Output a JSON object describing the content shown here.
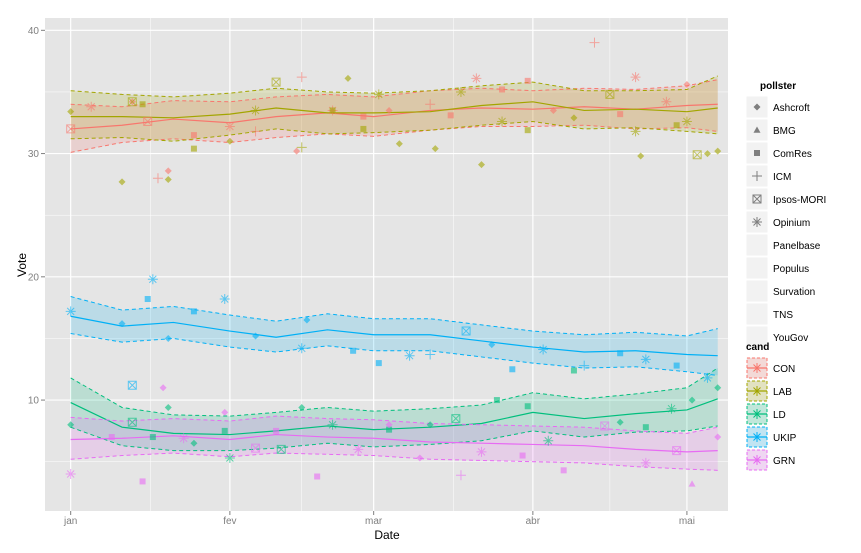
{
  "chart_data": {
    "type": "scatter",
    "xlabel": "Date",
    "ylabel": "Vote",
    "x_tick_labels": [
      "jan",
      "fev",
      "mar",
      "abr",
      "mai"
    ],
    "x_tick_days": [
      0,
      31,
      59,
      90,
      120
    ],
    "xlim_days": [
      -5,
      128
    ],
    "y_ticks": [
      10,
      20,
      30,
      40
    ],
    "ylim": [
      1,
      41
    ],
    "grid": true,
    "legend_position": "right",
    "pollster_legend": {
      "title": "pollster",
      "entries": [
        {
          "name": "Ashcroft",
          "shape": "diamond"
        },
        {
          "name": "BMG",
          "shape": "triangle"
        },
        {
          "name": "ComRes",
          "shape": "square"
        },
        {
          "name": "ICM",
          "shape": "plus"
        },
        {
          "name": "Ipsos-MORI",
          "shape": "boxx"
        },
        {
          "name": "Opinium",
          "shape": "star"
        },
        {
          "name": "Panelbase",
          "shape": "none"
        },
        {
          "name": "Populus",
          "shape": "none"
        },
        {
          "name": "Survation",
          "shape": "none"
        },
        {
          "name": "TNS",
          "shape": "none"
        },
        {
          "name": "YouGov",
          "shape": "none"
        }
      ]
    },
    "cand_legend": {
      "title": "cand",
      "entries": [
        {
          "name": "CON",
          "color": "#F8766D"
        },
        {
          "name": "LAB",
          "color": "#A3A500"
        },
        {
          "name": "LD",
          "color": "#00BF7D"
        },
        {
          "name": "UKIP",
          "color": "#00B0F6"
        },
        {
          "name": "GRN",
          "color": "#E76BF3"
        }
      ]
    },
    "trend_days": [
      0,
      10,
      20,
      31,
      40,
      50,
      59,
      70,
      80,
      90,
      100,
      110,
      120,
      126
    ],
    "series": [
      {
        "name": "CON",
        "color": "#F8766D",
        "mean": [
          32.0,
          32.3,
          32.8,
          32.5,
          33.0,
          33.3,
          33.0,
          33.5,
          33.7,
          33.6,
          33.8,
          33.6,
          33.9,
          34.0
        ],
        "lower": [
          30.1,
          30.9,
          31.2,
          30.9,
          31.3,
          31.6,
          31.4,
          31.9,
          32.2,
          32.2,
          32.3,
          32.0,
          32.1,
          31.8
        ],
        "upper": [
          34.0,
          33.8,
          34.3,
          34.2,
          34.6,
          34.8,
          34.6,
          35.1,
          35.3,
          35.1,
          35.3,
          35.2,
          35.5,
          36.0
        ],
        "points": [
          {
            "day": 0,
            "value": 32.0,
            "pollster": "Ipsos-MORI"
          },
          {
            "day": 4,
            "value": 33.8,
            "pollster": "Opinium"
          },
          {
            "day": 12,
            "value": 34.2,
            "pollster": "Ashcroft"
          },
          {
            "day": 15,
            "value": 32.6,
            "pollster": "Ipsos-MORI"
          },
          {
            "day": 17,
            "value": 28.0,
            "pollster": "ICM"
          },
          {
            "day": 19,
            "value": 28.6,
            "pollster": "Ashcroft"
          },
          {
            "day": 24,
            "value": 31.5,
            "pollster": "ComRes"
          },
          {
            "day": 31,
            "value": 32.2,
            "pollster": "Opinium"
          },
          {
            "day": 36,
            "value": 31.8,
            "pollster": "ICM"
          },
          {
            "day": 45,
            "value": 36.2,
            "pollster": "ICM"
          },
          {
            "day": 44,
            "value": 30.2,
            "pollster": "Ashcroft"
          },
          {
            "day": 51,
            "value": 33.5,
            "pollster": "Opinium"
          },
          {
            "day": 57,
            "value": 33.0,
            "pollster": "ComRes"
          },
          {
            "day": 62,
            "value": 33.5,
            "pollster": "Ashcroft"
          },
          {
            "day": 70,
            "value": 34.0,
            "pollster": "ICM"
          },
          {
            "day": 74,
            "value": 33.1,
            "pollster": "ComRes"
          },
          {
            "day": 79,
            "value": 36.1,
            "pollster": "Opinium"
          },
          {
            "day": 84,
            "value": 35.2,
            "pollster": "ComRes"
          },
          {
            "day": 89,
            "value": 35.9,
            "pollster": "ComRes"
          },
          {
            "day": 94,
            "value": 33.5,
            "pollster": "Ashcroft"
          },
          {
            "day": 102,
            "value": 39.0,
            "pollster": "ICM"
          },
          {
            "day": 107,
            "value": 33.2,
            "pollster": "ComRes"
          },
          {
            "day": 110,
            "value": 36.2,
            "pollster": "Opinium"
          },
          {
            "day": 116,
            "value": 34.2,
            "pollster": "Opinium"
          },
          {
            "day": 120,
            "value": 35.6,
            "pollster": "Ashcroft"
          }
        ]
      },
      {
        "name": "LAB",
        "color": "#A3A500",
        "mean": [
          33.0,
          33.0,
          32.9,
          33.2,
          33.7,
          33.3,
          33.3,
          33.4,
          33.9,
          34.2,
          33.5,
          33.6,
          33.4,
          33.7
        ],
        "lower": [
          31.2,
          31.3,
          31.0,
          31.5,
          32.0,
          31.6,
          31.7,
          31.9,
          32.3,
          32.6,
          32.0,
          32.1,
          31.8,
          31.6
        ],
        "upper": [
          35.1,
          34.8,
          34.6,
          34.9,
          35.3,
          35.0,
          34.9,
          35.1,
          35.5,
          35.8,
          35.1,
          35.1,
          35.2,
          36.3
        ],
        "points": [
          {
            "day": 0,
            "value": 33.4,
            "pollster": "Ashcroft"
          },
          {
            "day": 10,
            "value": 27.7,
            "pollster": "Ashcroft"
          },
          {
            "day": 12,
            "value": 34.2,
            "pollster": "Ipsos-MORI"
          },
          {
            "day": 14,
            "value": 34.0,
            "pollster": "ComRes"
          },
          {
            "day": 19,
            "value": 27.9,
            "pollster": "Ashcroft"
          },
          {
            "day": 24,
            "value": 30.4,
            "pollster": "ComRes"
          },
          {
            "day": 31,
            "value": 31.0,
            "pollster": "Ashcroft"
          },
          {
            "day": 36,
            "value": 33.5,
            "pollster": "Opinium"
          },
          {
            "day": 40,
            "value": 35.8,
            "pollster": "Ipsos-MORI"
          },
          {
            "day": 45,
            "value": 30.5,
            "pollster": "ICM"
          },
          {
            "day": 51,
            "value": 33.5,
            "pollster": "ComRes"
          },
          {
            "day": 54,
            "value": 36.1,
            "pollster": "Ashcroft"
          },
          {
            "day": 57,
            "value": 32.0,
            "pollster": "ComRes"
          },
          {
            "day": 60,
            "value": 34.8,
            "pollster": "Opinium"
          },
          {
            "day": 64,
            "value": 30.8,
            "pollster": "Ashcroft"
          },
          {
            "day": 71,
            "value": 30.4,
            "pollster": "Ashcroft"
          },
          {
            "day": 76,
            "value": 35.0,
            "pollster": "Opinium"
          },
          {
            "day": 80,
            "value": 29.1,
            "pollster": "Ashcroft"
          },
          {
            "day": 84,
            "value": 32.6,
            "pollster": "Opinium"
          },
          {
            "day": 89,
            "value": 31.9,
            "pollster": "ComRes"
          },
          {
            "day": 98,
            "value": 32.9,
            "pollster": "Ashcroft"
          },
          {
            "day": 105,
            "value": 34.8,
            "pollster": "Ipsos-MORI"
          },
          {
            "day": 110,
            "value": 31.8,
            "pollster": "Opinium"
          },
          {
            "day": 111,
            "value": 29.8,
            "pollster": "Ashcroft"
          },
          {
            "day": 118,
            "value": 32.3,
            "pollster": "ComRes"
          },
          {
            "day": 120,
            "value": 32.6,
            "pollster": "Opinium"
          },
          {
            "day": 124,
            "value": 30.0,
            "pollster": "Ashcroft"
          },
          {
            "day": 122,
            "value": 29.9,
            "pollster": "Ipsos-MORI"
          },
          {
            "day": 126,
            "value": 30.2,
            "pollster": "Ashcroft"
          }
        ]
      },
      {
        "name": "LD",
        "color": "#00BF7D",
        "mean": [
          9.8,
          7.8,
          7.3,
          7.2,
          7.5,
          7.9,
          7.6,
          7.8,
          8.1,
          9.0,
          8.5,
          8.9,
          9.2,
          10.1
        ],
        "lower": [
          7.8,
          6.3,
          5.9,
          5.9,
          6.1,
          6.5,
          6.2,
          6.4,
          6.7,
          7.5,
          7.0,
          7.4,
          7.5,
          7.9
        ],
        "upper": [
          11.8,
          9.4,
          8.8,
          8.7,
          9.0,
          9.4,
          9.1,
          9.3,
          9.6,
          10.6,
          10.1,
          10.5,
          11.0,
          12.6
        ],
        "points": [
          {
            "day": 0,
            "value": 8.0,
            "pollster": "Ashcroft"
          },
          {
            "day": 12,
            "value": 8.2,
            "pollster": "Ipsos-MORI"
          },
          {
            "day": 16,
            "value": 7.0,
            "pollster": "ComRes"
          },
          {
            "day": 19,
            "value": 9.4,
            "pollster": "Ashcroft"
          },
          {
            "day": 24,
            "value": 6.5,
            "pollster": "Ashcroft"
          },
          {
            "day": 30,
            "value": 7.5,
            "pollster": "ComRes"
          },
          {
            "day": 31,
            "value": 5.3,
            "pollster": "Opinium"
          },
          {
            "day": 41,
            "value": 6.0,
            "pollster": "Ipsos-MORI"
          },
          {
            "day": 45,
            "value": 9.4,
            "pollster": "Ashcroft"
          },
          {
            "day": 51,
            "value": 8.0,
            "pollster": "Opinium"
          },
          {
            "day": 62,
            "value": 7.6,
            "pollster": "ComRes"
          },
          {
            "day": 70,
            "value": 8.0,
            "pollster": "Ashcroft"
          },
          {
            "day": 75,
            "value": 8.5,
            "pollster": "Ipsos-MORI"
          },
          {
            "day": 83,
            "value": 10.0,
            "pollster": "ComRes"
          },
          {
            "day": 89,
            "value": 9.5,
            "pollster": "ComRes"
          },
          {
            "day": 93,
            "value": 6.7,
            "pollster": "Opinium"
          },
          {
            "day": 98,
            "value": 12.4,
            "pollster": "ComRes"
          },
          {
            "day": 107,
            "value": 8.2,
            "pollster": "Ashcroft"
          },
          {
            "day": 112,
            "value": 7.8,
            "pollster": "ComRes"
          },
          {
            "day": 117,
            "value": 9.3,
            "pollster": "Opinium"
          },
          {
            "day": 121,
            "value": 10.0,
            "pollster": "Ashcroft"
          },
          {
            "day": 126,
            "value": 11.0,
            "pollster": "Ashcroft"
          }
        ]
      },
      {
        "name": "UKIP",
        "color": "#00B0F6",
        "mean": [
          16.8,
          16.0,
          16.3,
          15.6,
          15.1,
          15.7,
          15.3,
          15.3,
          14.8,
          14.3,
          13.9,
          14.0,
          13.7,
          13.6
        ],
        "lower": [
          15.4,
          14.7,
          15.0,
          14.3,
          13.9,
          14.4,
          14.0,
          14.0,
          13.5,
          13.0,
          12.6,
          12.7,
          12.3,
          12.0
        ],
        "upper": [
          18.4,
          17.3,
          17.6,
          16.9,
          16.4,
          17.0,
          16.6,
          16.6,
          16.1,
          15.6,
          15.3,
          15.5,
          15.2,
          15.8
        ],
        "points": [
          {
            "day": 0,
            "value": 17.2,
            "pollster": "Opinium"
          },
          {
            "day": 10,
            "value": 16.2,
            "pollster": "Ashcroft"
          },
          {
            "day": 12,
            "value": 11.2,
            "pollster": "Ipsos-MORI"
          },
          {
            "day": 15,
            "value": 18.2,
            "pollster": "ComRes"
          },
          {
            "day": 16,
            "value": 19.8,
            "pollster": "Opinium"
          },
          {
            "day": 19,
            "value": 15.0,
            "pollster": "Ashcroft"
          },
          {
            "day": 24,
            "value": 17.2,
            "pollster": "ComRes"
          },
          {
            "day": 30,
            "value": 18.2,
            "pollster": "Opinium"
          },
          {
            "day": 36,
            "value": 15.2,
            "pollster": "Ashcroft"
          },
          {
            "day": 45,
            "value": 14.2,
            "pollster": "Opinium"
          },
          {
            "day": 46,
            "value": 16.5,
            "pollster": "Ashcroft"
          },
          {
            "day": 55,
            "value": 14.0,
            "pollster": "ComRes"
          },
          {
            "day": 60,
            "value": 13.0,
            "pollster": "ComRes"
          },
          {
            "day": 66,
            "value": 13.6,
            "pollster": "Opinium"
          },
          {
            "day": 70,
            "value": 13.7,
            "pollster": "ICM"
          },
          {
            "day": 77,
            "value": 15.6,
            "pollster": "Ipsos-MORI"
          },
          {
            "day": 82,
            "value": 14.5,
            "pollster": "Ashcroft"
          },
          {
            "day": 86,
            "value": 12.5,
            "pollster": "ComRes"
          },
          {
            "day": 92,
            "value": 14.1,
            "pollster": "Opinium"
          },
          {
            "day": 100,
            "value": 12.8,
            "pollster": "ICM"
          },
          {
            "day": 107,
            "value": 13.8,
            "pollster": "ComRes"
          },
          {
            "day": 112,
            "value": 13.3,
            "pollster": "Opinium"
          },
          {
            "day": 118,
            "value": 12.8,
            "pollster": "ComRes"
          },
          {
            "day": 124,
            "value": 11.8,
            "pollster": "Opinium"
          }
        ]
      },
      {
        "name": "GRN",
        "color": "#E76BF3",
        "mean": [
          6.8,
          6.9,
          7.1,
          6.8,
          7.2,
          7.0,
          6.9,
          6.6,
          6.5,
          6.4,
          6.3,
          6.0,
          5.8,
          5.9
        ],
        "lower": [
          5.2,
          5.5,
          5.7,
          5.4,
          5.7,
          5.6,
          5.5,
          5.2,
          5.1,
          5.0,
          4.9,
          4.6,
          4.4,
          4.3
        ],
        "upper": [
          8.6,
          8.3,
          8.5,
          8.3,
          8.7,
          8.5,
          8.4,
          8.1,
          8.0,
          7.9,
          7.8,
          7.5,
          7.3,
          7.8
        ],
        "points": [
          {
            "day": 0,
            "value": 4.0,
            "pollster": "Opinium"
          },
          {
            "day": 8,
            "value": 7.0,
            "pollster": "ComRes"
          },
          {
            "day": 14,
            "value": 3.4,
            "pollster": "ComRes"
          },
          {
            "day": 18,
            "value": 11.0,
            "pollster": "Ashcroft"
          },
          {
            "day": 22,
            "value": 6.9,
            "pollster": "Opinium"
          },
          {
            "day": 30,
            "value": 9.0,
            "pollster": "Ashcroft"
          },
          {
            "day": 36,
            "value": 6.1,
            "pollster": "Ipsos-MORI"
          },
          {
            "day": 40,
            "value": 7.5,
            "pollster": "ComRes"
          },
          {
            "day": 48,
            "value": 3.8,
            "pollster": "ComRes"
          },
          {
            "day": 56,
            "value": 6.0,
            "pollster": "Opinium"
          },
          {
            "day": 62,
            "value": 8.0,
            "pollster": "Ashcroft"
          },
          {
            "day": 68,
            "value": 5.3,
            "pollster": "Ashcroft"
          },
          {
            "day": 76,
            "value": 3.9,
            "pollster": "ICM"
          },
          {
            "day": 80,
            "value": 5.8,
            "pollster": "Opinium"
          },
          {
            "day": 88,
            "value": 5.5,
            "pollster": "ComRes"
          },
          {
            "day": 96,
            "value": 4.3,
            "pollster": "ComRes"
          },
          {
            "day": 104,
            "value": 7.9,
            "pollster": "Ipsos-MORI"
          },
          {
            "day": 112,
            "value": 4.9,
            "pollster": "Opinium"
          },
          {
            "day": 118,
            "value": 5.9,
            "pollster": "Ipsos-MORI"
          },
          {
            "day": 121,
            "value": 3.2,
            "pollster": "BMG"
          },
          {
            "day": 126,
            "value": 7.0,
            "pollster": "Ashcroft"
          }
        ]
      }
    ]
  }
}
